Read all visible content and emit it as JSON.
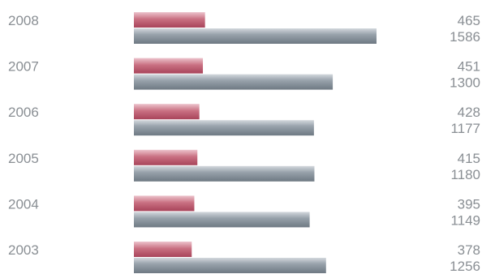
{
  "colors": {
    "series_a": "#c2647a",
    "series_b": "#8a959e",
    "text": "#8a8f94",
    "background": "#ffffff"
  },
  "chart_data": {
    "type": "bar",
    "orientation": "horizontal",
    "categories": [
      "2008",
      "2007",
      "2006",
      "2005",
      "2004",
      "2003"
    ],
    "series": [
      {
        "values": [
          465,
          451,
          428,
          415,
          395,
          378
        ]
      },
      {
        "values": [
          1586,
          1300,
          1177,
          1180,
          1149,
          1256
        ]
      }
    ],
    "xlim": [
      0,
      1600
    ],
    "grid": false,
    "legend": "none"
  }
}
